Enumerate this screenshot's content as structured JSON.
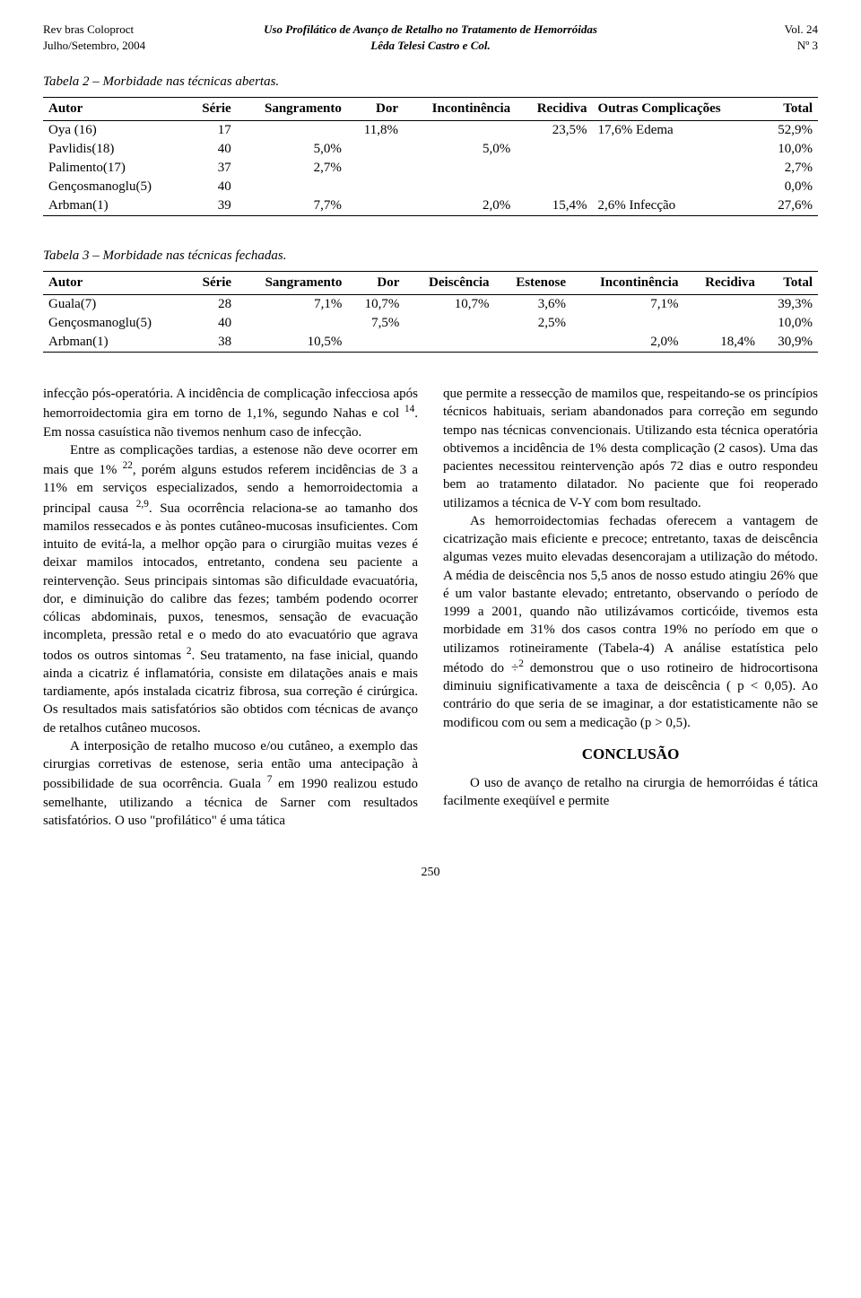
{
  "running_head": {
    "left_line1": "Rev bras Coloproct",
    "left_line2": "Julho/Setembro, 2004",
    "center_line1": "Uso Profilático de Avanço de Retalho no Tratamento de Hemorróidas",
    "center_line2": "Lêda Telesi Castro e Col.",
    "right_line1": "Vol. 24",
    "right_line2": "Nº 3"
  },
  "table2": {
    "title": "Tabela 2 – Morbidade nas técnicas abertas.",
    "headers": [
      "Autor",
      "Série",
      "Sangramento",
      "Dor",
      "Incontinência",
      "Recidiva",
      "Outras Complicações",
      "Total"
    ],
    "rows": [
      [
        "Oya (16)",
        "17",
        "",
        "11,8%",
        "",
        "23,5%",
        "17,6% Edema",
        "52,9%"
      ],
      [
        "Pavlidis(18)",
        "40",
        "5,0%",
        "",
        "5,0%",
        "",
        "",
        "10,0%"
      ],
      [
        "Palimento(17)",
        "37",
        "2,7%",
        "",
        "",
        "",
        "",
        "2,7%"
      ],
      [
        "Gençosmanoglu(5)",
        "40",
        "",
        "",
        "",
        "",
        "",
        "0,0%"
      ],
      [
        "Arbman(1)",
        "39",
        "7,7%",
        "",
        "2,0%",
        "15,4%",
        "2,6% Infecção",
        "27,6%"
      ]
    ]
  },
  "table3": {
    "title": "Tabela 3  – Morbidade nas técnicas fechadas.",
    "headers": [
      "Autor",
      "Série",
      "Sangramento",
      "Dor",
      "Deiscência",
      "Estenose",
      "Incontinência",
      "Recidiva",
      "Total"
    ],
    "rows": [
      [
        "Guala(7)",
        "28",
        "7,1%",
        "10,7%",
        "10,7%",
        "3,6%",
        "7,1%",
        "",
        "39,3%"
      ],
      [
        "Gençosmanoglu(5)",
        "40",
        "",
        "7,5%",
        "",
        "2,5%",
        "",
        "",
        "10,0%"
      ],
      [
        "Arbman(1)",
        "38",
        "10,5%",
        "",
        "",
        "",
        "2,0%",
        "18,4%",
        "30,9%"
      ]
    ]
  },
  "colA": {
    "p1": "infecção pós-operatória. A incidência de complicação infecciosa após hemorroidectomia gira em torno de 1,1%, segundo Nahas e col ",
    "p1_sup": "14",
    "p1_tail": ". Em nossa casuística não tivemos nenhum caso de infecção.",
    "p2_head": "Entre as complicações tardias, a estenose não deve ocorrer em mais que 1% ",
    "p2_sup1": "22",
    "p2_mid": ", porém alguns estudos referem incidências de 3 a 11% em serviços especializados, sendo a hemorroidectomia a principal causa ",
    "p2_sup2": "2,9",
    "p2_tail": ". Sua ocorrência relaciona-se ao tamanho dos mamilos ressecados e às pontes cutâneo-mucosas insuficientes. Com intuito de evitá-la, a melhor opção para o cirurgião muitas vezes é deixar mamilos intocados, entretanto, condena seu paciente a reintervenção. Seus principais sintomas são dificuldade evacuatória, dor, e diminuição do calibre das fezes; também podendo ocorrer cólicas abdominais, puxos, tenesmos, sensação de evacuação incompleta, pressão retal e o medo do ato evacuatório que agrava todos os outros sintomas ",
    "p2_sup3": "2",
    "p2_end": ". Seu tratamento, na fase inicial, quando ainda a cicatriz é inflamatória, consiste em dilatações anais e mais tardiamente, após instalada cicatriz fibrosa, sua correção é cirúrgica. Os resultados mais satisfatórios são obtidos com técnicas de avanço de retalhos cutâneo mucosos.",
    "p3_head": "A interposição de retalho mucoso e/ou cutâneo, a exemplo das cirurgias corretivas de estenose, seria então uma antecipação à possibilidade de sua ocorrência. Guala ",
    "p3_sup": "7",
    "p3_tail": " em 1990 realizou estudo semelhante, utilizando a técnica de Sarner com resultados satisfatórios. O uso \"profilático\" é uma tática"
  },
  "colB": {
    "p1": "que permite a ressecção de mamilos que, respeitando-se os princípios técnicos habituais, seriam abandonados para correção em segundo tempo nas técnicas convencionais. Utilizando esta técnica operatória obtivemos a incidência de 1% desta complicação (2 casos). Uma das pacientes necessitou reintervenção após 72 dias e outro respondeu bem ao tratamento dilatador. No paciente que foi reoperado utilizamos a técnica de V-Y com bom resultado.",
    "p2_head": "As hemorroidectomias fechadas oferecem a vantagem de cicatrização mais eficiente e precoce; entretanto, taxas de deiscência algumas vezes muito elevadas desencorajam a utilização do método. A média de deiscência nos 5,5 anos de nosso estudo atingiu 26% que é um valor bastante elevado; entretanto, observando o período de 1999 a 2001, quando não utilizávamos corticóide, tivemos esta morbidade em 31% dos casos contra 19% no período em que o utilizamos rotineiramente (Tabela-4) A análise estatística pelo método do ÷",
    "p2_sup": "2 ",
    "p2_tail": "demonstrou que o uso rotineiro de hidrocortisona diminuiu significativamente a taxa de deiscência ( p < 0,05). Ao contrário do que seria de se imaginar, a dor estatisticamente não se modificou com ou sem a medicação (p > 0,5).",
    "heading": "CONCLUSÃO",
    "p3": "O uso de avanço de retalho na cirurgia de hemorróidas é tática facilmente exeqüível e permite"
  },
  "page_number": "250"
}
